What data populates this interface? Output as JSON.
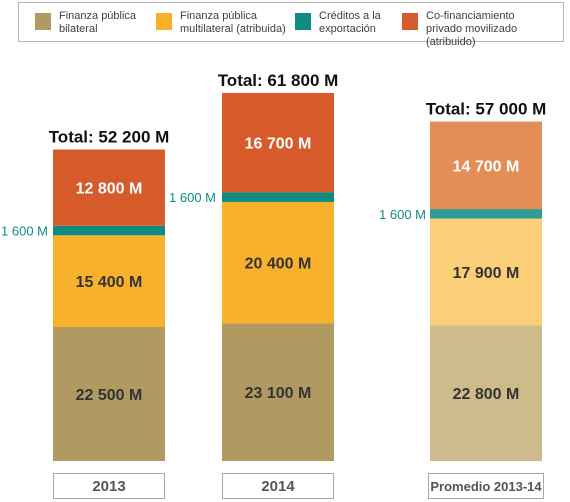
{
  "colors": {
    "bilateral": "#b19a62",
    "multilateral": "#f8b12c",
    "export_credits": "#0e8c83",
    "private": "#d65a2a",
    "avg_bilateral": "#cdbb8c",
    "avg_multilateral": "#fbcf77",
    "avg_export_credits": "#2e9b94",
    "avg_private": "#e48e57",
    "text_dark": "#333333",
    "text_light": "#ffffff",
    "teal_label": "#0e8c83"
  },
  "legend": [
    {
      "key": "bilateral",
      "label": "Finanza pública\nbilateral"
    },
    {
      "key": "multilateral",
      "label": "Finanza pública\nmultilateral (atribuida)"
    },
    {
      "key": "export_credits",
      "label": "Créditos a la\nexportación"
    },
    {
      "key": "private",
      "label": "Co-financiamiento\nprivado movilizado (atribuido)"
    }
  ],
  "chart_data": {
    "type": "bar",
    "stacked": true,
    "unit": "M",
    "categories": [
      "2013",
      "2014",
      "Promedio 2013-14"
    ],
    "series": [
      {
        "name": "Finanza pública bilateral",
        "key": "bilateral",
        "values": [
          22500,
          23100,
          22800
        ],
        "labels": [
          "22 500 M",
          "23 100 M",
          "22 800 M"
        ]
      },
      {
        "name": "Finanza pública multilateral (atribuida)",
        "key": "multilateral",
        "values": [
          15400,
          20400,
          17900
        ],
        "labels": [
          "15 400 M",
          "20 400 M",
          "17 900 M"
        ]
      },
      {
        "name": "Créditos a la exportación",
        "key": "export_credits",
        "values": [
          1600,
          1600,
          1600
        ],
        "labels": [
          "1 600 M",
          "1 600 M",
          "1 600 M"
        ]
      },
      {
        "name": "Co-financiamiento privado movilizado (atribuido)",
        "key": "private",
        "values": [
          12800,
          16700,
          14700
        ],
        "labels": [
          "12 800 M",
          "16 700 M",
          "14 700 M"
        ]
      }
    ],
    "totals": [
      "Total: 52 200 M",
      "Total: 61 800 M",
      "Total: 57 000 M"
    ],
    "total_values": [
      52200,
      61800,
      57000
    ]
  }
}
